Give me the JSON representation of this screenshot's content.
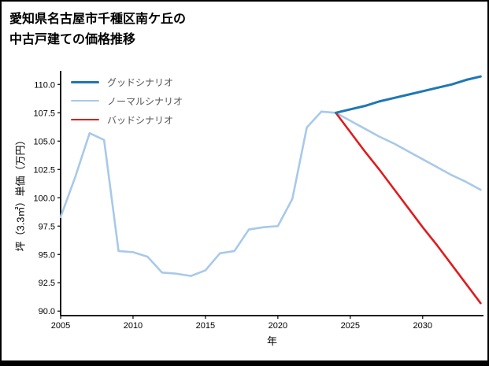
{
  "title": {
    "line1": "愛知県名古屋市千種区南ケ丘の",
    "line2": "中古戸建ての価格推移"
  },
  "chart_data": {
    "type": "line",
    "title": "愛知県名古屋市千種区南ケ丘の中古戸建ての価格推移",
    "xlabel": "年",
    "ylabel": "坪（3.3㎡）単価（万円）",
    "xlim": [
      2005,
      2034.2
    ],
    "ylim": [
      89.6,
      111.2
    ],
    "xticks": [
      "2005",
      "2010",
      "2015",
      "2020",
      "2025",
      "2030"
    ],
    "yticks": [
      "90.0",
      "92.5",
      "95.0",
      "97.5",
      "100.0",
      "102.5",
      "105.0",
      "107.5",
      "110.0"
    ],
    "grid": false,
    "legend_position": "upper left",
    "axis_color": "#000000",
    "legend_text_color": "#555555",
    "series": [
      {
        "name": "グッドシナリオ",
        "color": "#1f77b4",
        "width": 3,
        "x": [
          2024,
          2025,
          2026,
          2027,
          2028,
          2029,
          2030,
          2031,
          2032,
          2033,
          2034
        ],
        "y": [
          107.5,
          107.8,
          108.1,
          108.5,
          108.8,
          109.1,
          109.4,
          109.7,
          110.0,
          110.4,
          110.7
        ]
      },
      {
        "name": "ノーマルシナリオ",
        "color": "#a8c9e9",
        "width": 2.6,
        "x": [
          2005,
          2006,
          2007,
          2008,
          2009,
          2010,
          2011,
          2012,
          2013,
          2014,
          2015,
          2016,
          2017,
          2018,
          2019,
          2020,
          2021,
          2022,
          2023,
          2024,
          2025,
          2026,
          2027,
          2028,
          2029,
          2030,
          2031,
          2032,
          2033,
          2034
        ],
        "y": [
          98.3,
          101.8,
          105.7,
          105.1,
          95.3,
          95.2,
          94.8,
          93.4,
          93.3,
          93.1,
          93.6,
          95.1,
          95.3,
          97.2,
          97.4,
          97.5,
          99.9,
          106.2,
          107.6,
          107.5,
          106.8,
          106.1,
          105.4,
          104.8,
          104.1,
          103.4,
          102.7,
          102.0,
          101.4,
          100.7
        ]
      },
      {
        "name": "バッドシナリオ",
        "color": "#e01b1c",
        "width": 2.6,
        "x": [
          2024,
          2025,
          2026,
          2027,
          2028,
          2029,
          2030,
          2031,
          2032,
          2033,
          2034
        ],
        "y": [
          107.5,
          105.8,
          104.1,
          102.5,
          100.8,
          99.1,
          97.4,
          95.8,
          94.1,
          92.4,
          90.7
        ]
      }
    ]
  }
}
